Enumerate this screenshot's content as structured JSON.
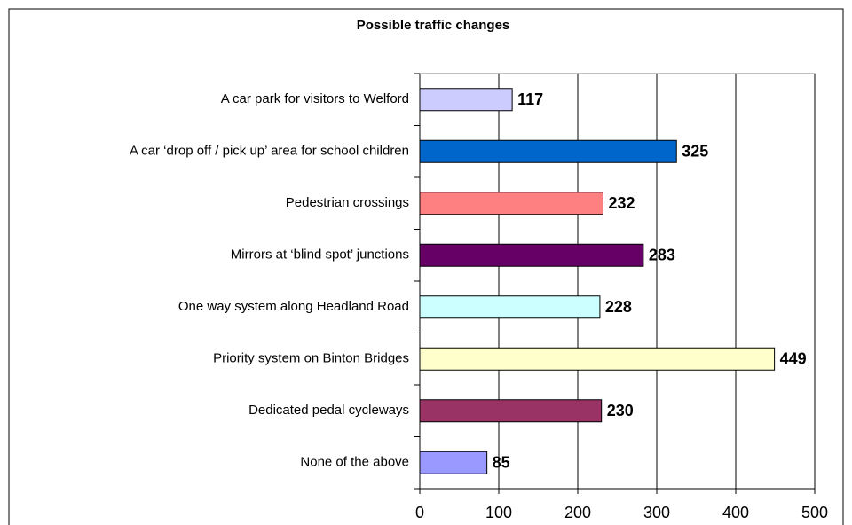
{
  "chart_data": {
    "type": "bar",
    "orientation": "horizontal",
    "title": "Possible traffic changes",
    "categories": [
      "A car park for visitors to Welford",
      "A car ‘drop off / pick up’ area for school children",
      "Pedestrian crossings",
      "Mirrors at ‘blind spot’ junctions",
      "One way system along Headland Road",
      "Priority system on Binton Bridges",
      "Dedicated pedal cycleways",
      "None of the above"
    ],
    "values": [
      117,
      325,
      232,
      283,
      228,
      449,
      230,
      85
    ],
    "colors": [
      "#ccccff",
      "#0066cc",
      "#ff8080",
      "#660066",
      "#ccffff",
      "#ffffcc",
      "#993366",
      "#9999ff"
    ],
    "xlim": [
      0,
      500
    ],
    "xticks": [
      0,
      100,
      200,
      300,
      400,
      500
    ],
    "grid": true
  }
}
